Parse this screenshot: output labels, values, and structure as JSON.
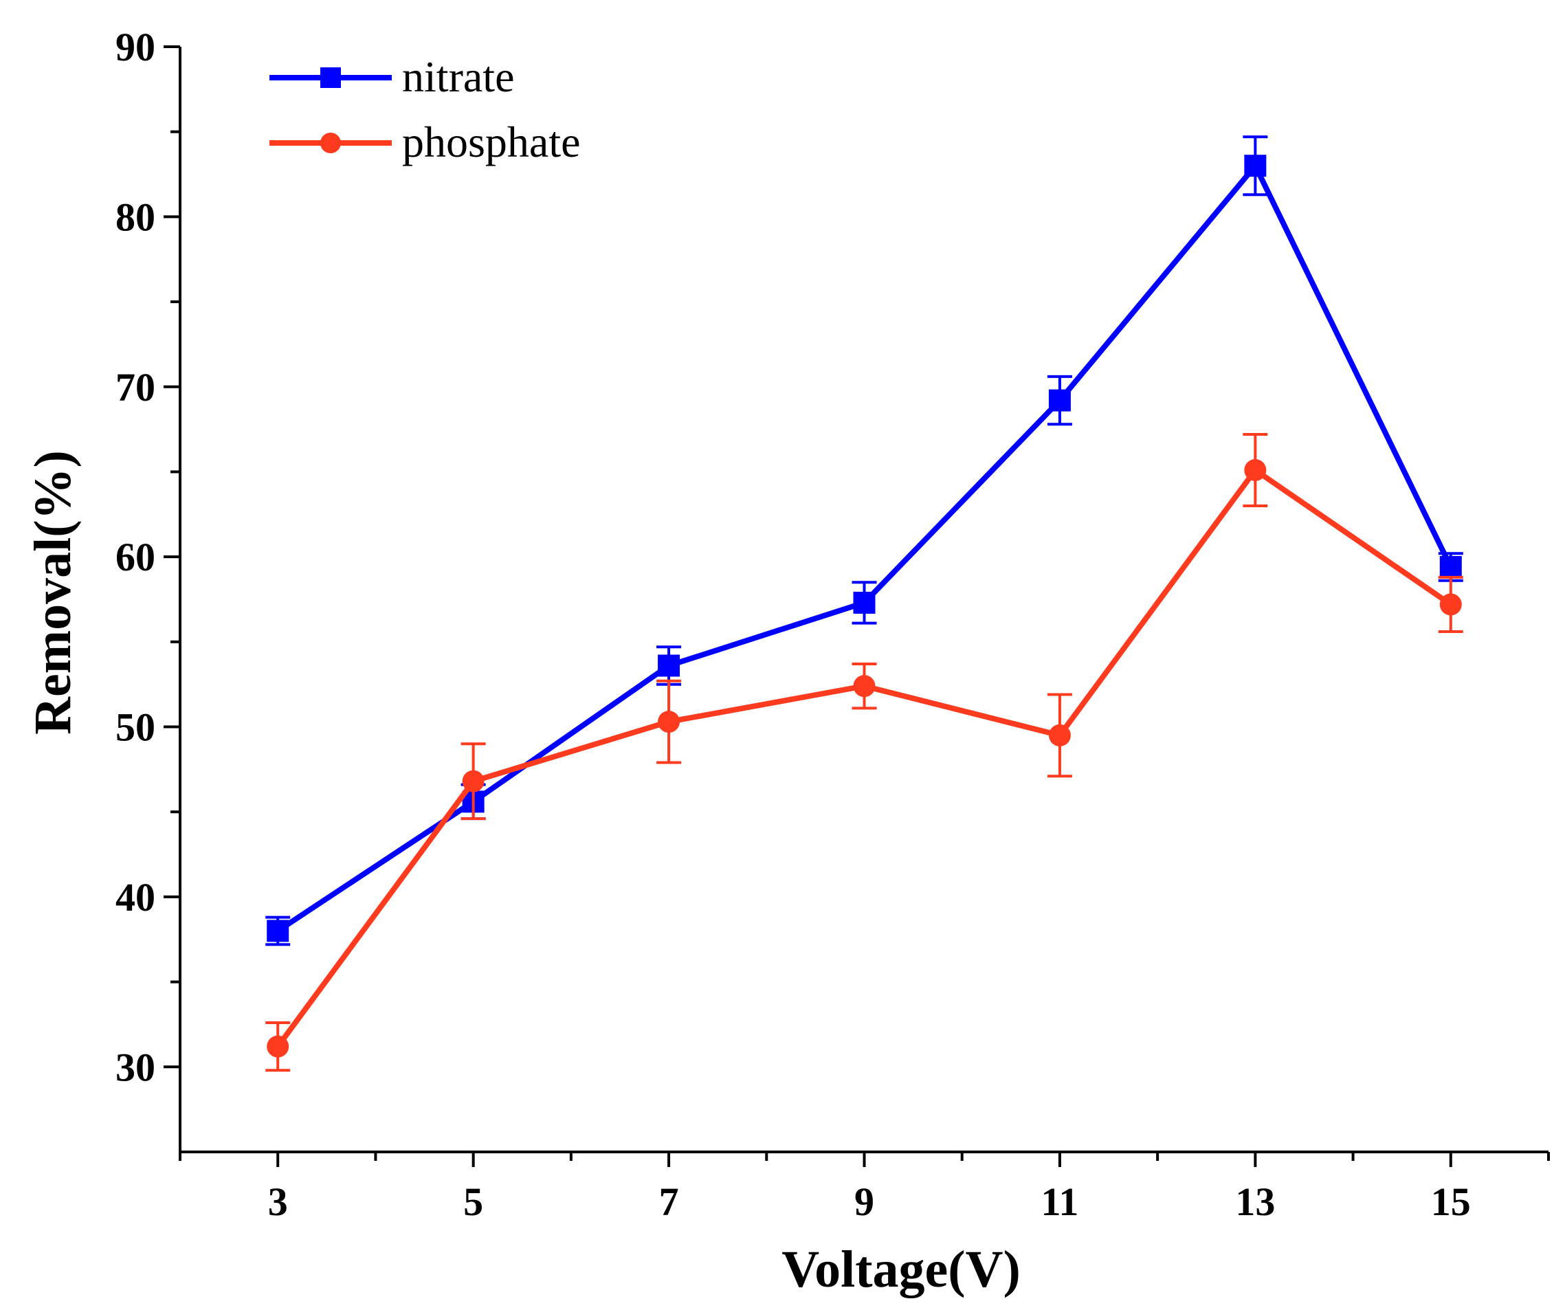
{
  "chart_data": {
    "type": "line",
    "title": "",
    "xlabel": "Voltage(V)",
    "ylabel": "Removal(%)",
    "x": [
      3,
      5,
      7,
      9,
      11,
      13,
      15
    ],
    "xlim": [
      2,
      16
    ],
    "ylim": [
      25,
      90
    ],
    "x_ticks": [
      "3",
      "5",
      "7",
      "9",
      "11",
      "13",
      "15"
    ],
    "y_ticks": [
      "30",
      "40",
      "50",
      "60",
      "70",
      "80",
      "90"
    ],
    "grid": false,
    "legend_position": "top-left",
    "series": [
      {
        "name": "nitrate",
        "color": "#0000ff",
        "marker": "square",
        "values": [
          38.0,
          45.6,
          53.6,
          57.3,
          69.2,
          83.0,
          59.4
        ],
        "errors": [
          0.8,
          1.0,
          1.1,
          1.2,
          1.4,
          1.7,
          0.8
        ]
      },
      {
        "name": "phosphate",
        "color": "#ff3b1f",
        "marker": "circle",
        "values": [
          31.2,
          46.8,
          50.3,
          52.4,
          49.5,
          65.1,
          57.2
        ],
        "errors": [
          1.4,
          2.2,
          2.4,
          1.3,
          2.4,
          2.1,
          1.6
        ]
      }
    ]
  }
}
